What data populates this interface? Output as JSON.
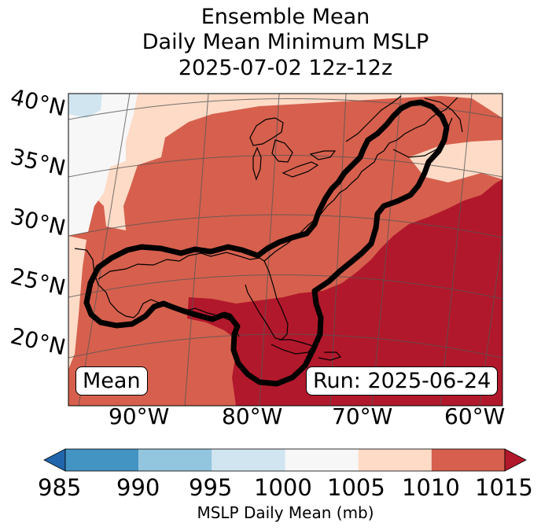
{
  "title": {
    "line1": "Ensemble Mean",
    "line2": "Daily Mean Minimum MSLP",
    "line3": "2025-07-02 12z-12z"
  },
  "map": {
    "latitude_labels": [
      "40°N",
      "35°N",
      "30°N",
      "25°N",
      "20°N"
    ],
    "longitude_labels": [
      "90°W",
      "80°W",
      "70°W",
      "60°W"
    ],
    "mean_label": "Mean",
    "run_label": "Run: 2025-06-24",
    "contour_description": "thick black contour encircling Gulf of Mexico, Florida and US East Coast",
    "colors": {
      "land_outline": "#000000",
      "contour": "#000000",
      "gridline": "#555555"
    }
  },
  "colorbar": {
    "label": "MSLP Daily Mean (mb)",
    "ticks": [
      "985",
      "990",
      "995",
      "1000",
      "1005",
      "1010",
      "1015"
    ],
    "bins": [
      {
        "range": "<985",
        "color": "#2166ac"
      },
      {
        "range": "985-990",
        "color": "#4393c3"
      },
      {
        "range": "990-995",
        "color": "#92c5de"
      },
      {
        "range": "995-1000",
        "color": "#d1e5f0"
      },
      {
        "range": "1000-1005",
        "color": "#f7f7f7"
      },
      {
        "range": "1005-1010",
        "color": "#fddbc7"
      },
      {
        "range": "1010-1015",
        "color": "#d6604d"
      },
      {
        "range": ">1015",
        "color": "#b2182b"
      }
    ]
  }
}
